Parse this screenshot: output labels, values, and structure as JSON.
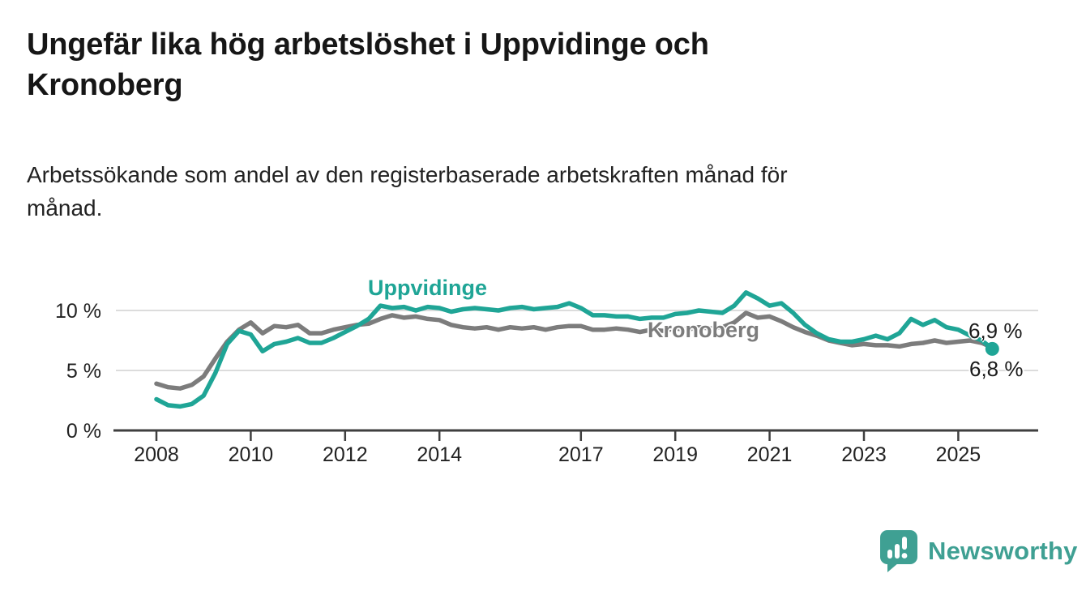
{
  "header": {
    "title": "Ungefär lika hög arbetslöshet i Uppvidinge och\nKronoberg",
    "subtitle": "Arbetssökande som andel av den registerbaserade arbetskraften månad för\nmånad."
  },
  "chart_data": {
    "type": "line",
    "title": "Ungefär lika hög arbetslöshet i Uppvidinge och Kronoberg",
    "subtitle": "Arbetssökande som andel av den registerbaserade arbetskraften månad för månad.",
    "unit": "%",
    "xlabel": "",
    "ylabel": "",
    "grid": "horizontal",
    "legend_position": "inline-labels",
    "y_range": [
      0,
      13.5
    ],
    "x_range": [
      2007.1,
      2026.7
    ],
    "y_ticks": [
      {
        "value": 0,
        "label": "0 %"
      },
      {
        "value": 5,
        "label": "5 %"
      },
      {
        "value": 10,
        "label": "10 %"
      }
    ],
    "x_ticks": [
      {
        "value": 2008,
        "label": "2008"
      },
      {
        "value": 2010,
        "label": "2010"
      },
      {
        "value": 2012,
        "label": "2012"
      },
      {
        "value": 2014,
        "label": "2014"
      },
      {
        "value": 2017,
        "label": "2017"
      },
      {
        "value": 2019,
        "label": "2019"
      },
      {
        "value": 2021,
        "label": "2021"
      },
      {
        "value": 2023,
        "label": "2023"
      },
      {
        "value": 2025,
        "label": "2025"
      }
    ],
    "x": [
      2008,
      2008.25,
      2008.5,
      2008.75,
      2009,
      2009.25,
      2009.5,
      2009.75,
      2010,
      2010.25,
      2010.5,
      2010.75,
      2011,
      2011.25,
      2011.5,
      2011.75,
      2012,
      2012.25,
      2012.5,
      2012.75,
      2013,
      2013.25,
      2013.5,
      2013.75,
      2014,
      2014.25,
      2014.5,
      2014.75,
      2015,
      2015.25,
      2015.5,
      2015.75,
      2016,
      2016.25,
      2016.5,
      2016.75,
      2017,
      2017.25,
      2017.5,
      2017.75,
      2018,
      2018.25,
      2018.5,
      2018.75,
      2019,
      2019.25,
      2019.5,
      2019.75,
      2020,
      2020.25,
      2020.5,
      2020.75,
      2021,
      2021.25,
      2021.5,
      2021.75,
      2022,
      2022.25,
      2022.5,
      2022.75,
      2023,
      2023.25,
      2023.5,
      2023.75,
      2024,
      2024.25,
      2024.5,
      2024.75,
      2025,
      2025.25,
      2025.5,
      2025.72
    ],
    "series": [
      {
        "name": "Uppvidinge",
        "color": "#1fa596",
        "end_label": "6,8 %",
        "end_value": 6.8,
        "end_marker": true,
        "values": [
          2.6,
          2.1,
          2.0,
          2.2,
          2.9,
          4.8,
          7.2,
          8.3,
          8.0,
          6.6,
          7.2,
          7.4,
          7.7,
          7.3,
          7.3,
          7.7,
          8.2,
          8.7,
          9.3,
          10.4,
          10.2,
          10.3,
          10.0,
          10.3,
          10.2,
          9.9,
          10.1,
          10.2,
          10.1,
          10.0,
          10.2,
          10.3,
          10.1,
          10.2,
          10.3,
          10.6,
          10.2,
          9.6,
          9.6,
          9.5,
          9.5,
          9.3,
          9.4,
          9.4,
          9.7,
          9.8,
          10.0,
          9.9,
          9.8,
          10.4,
          11.5,
          11.0,
          10.4,
          10.6,
          9.8,
          8.8,
          8.1,
          7.6,
          7.4,
          7.4,
          7.6,
          7.9,
          7.6,
          8.1,
          9.3,
          8.8,
          9.2,
          8.6,
          8.4,
          7.9,
          7.5,
          6.8
        ]
      },
      {
        "name": "Kronoberg",
        "color": "#7c7c7c",
        "end_label": "6,9 %",
        "end_value": 6.9,
        "end_marker": false,
        "values": [
          3.9,
          3.6,
          3.5,
          3.8,
          4.5,
          6.0,
          7.4,
          8.4,
          9.0,
          8.1,
          8.7,
          8.6,
          8.8,
          8.1,
          8.1,
          8.4,
          8.6,
          8.8,
          8.9,
          9.3,
          9.6,
          9.4,
          9.5,
          9.3,
          9.2,
          8.8,
          8.6,
          8.5,
          8.6,
          8.4,
          8.6,
          8.5,
          8.6,
          8.4,
          8.6,
          8.7,
          8.7,
          8.4,
          8.4,
          8.5,
          8.4,
          8.2,
          8.4,
          8.3,
          8.5,
          8.4,
          8.6,
          8.5,
          8.6,
          9.0,
          9.8,
          9.4,
          9.5,
          9.1,
          8.6,
          8.2,
          7.9,
          7.5,
          7.3,
          7.1,
          7.2,
          7.1,
          7.1,
          7.0,
          7.2,
          7.3,
          7.5,
          7.3,
          7.4,
          7.5,
          7.3,
          6.9
        ]
      }
    ],
    "colors": {
      "uppvidinge": "#1fa596",
      "kronoberg": "#7c7c7c",
      "gridline": "#dcdcdc",
      "axis": "#3f3f3f",
      "tick_text": "#222222"
    }
  },
  "footer": {
    "brand": "Newsworthy",
    "brand_color": "#3fa093"
  }
}
